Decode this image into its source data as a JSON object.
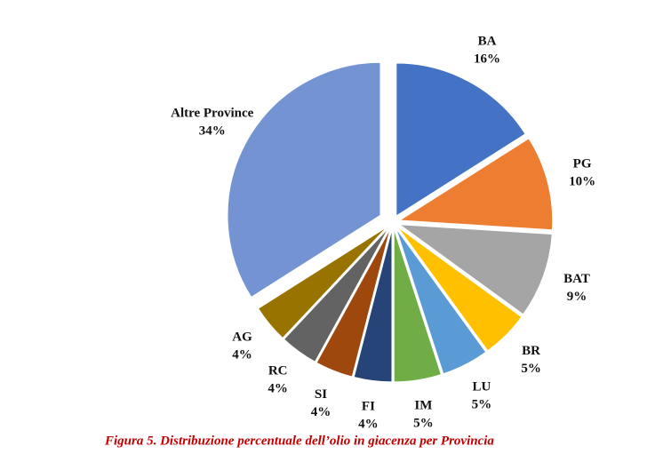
{
  "chart_data": {
    "type": "pie",
    "categories": [
      "BA",
      "PG",
      "BAT",
      "BR",
      "LU",
      "IM",
      "FI",
      "SI",
      "RC",
      "AG",
      "Altre Province"
    ],
    "values": [
      16,
      10,
      9,
      5,
      5,
      5,
      4,
      4,
      4,
      4,
      34
    ],
    "value_labels": [
      "16%",
      "10%",
      "9%",
      "5%",
      "5%",
      "5%",
      "4%",
      "4%",
      "4%",
      "4%",
      "34%"
    ],
    "colors": [
      "#4472c4",
      "#ed7d31",
      "#a5a5a5",
      "#ffc000",
      "#5b9bd5",
      "#70ad47",
      "#264478",
      "#9e480e",
      "#636363",
      "#997300",
      "#7393d2"
    ],
    "caption": "Figura 5. Distribuzione percentuale dell’olio in giacenza per Provincia"
  }
}
